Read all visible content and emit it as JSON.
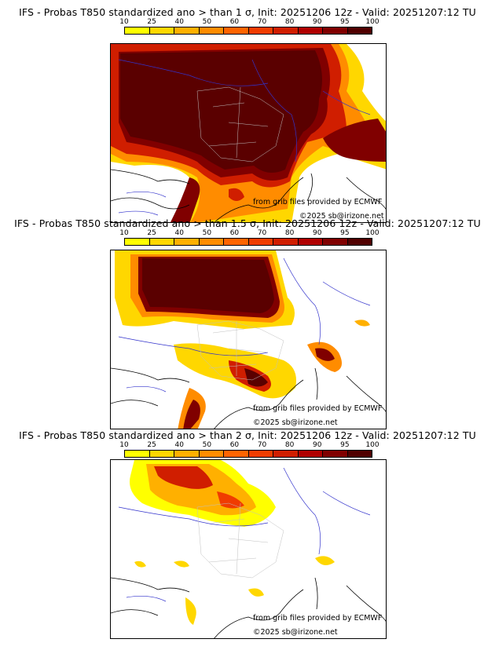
{
  "legend": {
    "ticks": [
      "10",
      "25",
      "40",
      "50",
      "60",
      "70",
      "80",
      "90",
      "95",
      "100"
    ],
    "colors": [
      "#ffff00",
      "#ffd700",
      "#ffb000",
      "#ff8c00",
      "#ff6400",
      "#f03c00",
      "#d01e00",
      "#b00000",
      "#800000",
      "#500000"
    ]
  },
  "panels": [
    {
      "title": "IFS - Probas T850  standardized ano > than 1 σ, Init: 20251206 12z - Valid: 20251207:12 TU",
      "credit_source": "from grib files provided by ECMWF",
      "credit_copyright": "©2025 sb@irizone.net"
    },
    {
      "title": "IFS - Probas T850  standardized ano > than 1.5 σ, Init: 20251206 12z - Valid: 20251207:12 TU",
      "credit_source": "from grib files provided by ECMWF",
      "credit_copyright": "©2025 sb@irizone.net"
    },
    {
      "title": "IFS - Probas T850  standardized ano > than 2 σ, Init: 20251206 12z - Valid: 20251207:12 TU",
      "credit_source": "from grib files provided by ECMWF",
      "credit_copyright": "©2025 sb@irizone.net"
    }
  ]
}
